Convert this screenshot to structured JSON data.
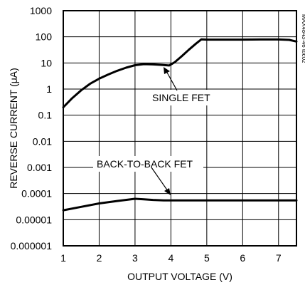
{
  "chart_data": {
    "type": "line",
    "xlabel": "OUTPUT VOLTAGE (V)",
    "ylabel": "REVERSE CURRENT (μA)",
    "xlim": [
      1,
      7.5
    ],
    "ylim": [
      1e-06,
      1000
    ],
    "yscale": "log",
    "grid": true,
    "x_ticks": [
      1,
      2,
      3,
      4,
      5,
      6,
      7
    ],
    "y_ticks": [
      {
        "value": 1000,
        "label": "1000"
      },
      {
        "value": 100,
        "label": "100"
      },
      {
        "value": 10,
        "label": "10"
      },
      {
        "value": 1,
        "label": "1"
      },
      {
        "value": 0.1,
        "label": "0.1"
      },
      {
        "value": 0.01,
        "label": "0.01"
      },
      {
        "value": 0.001,
        "label": "0.001"
      },
      {
        "value": 0.0001,
        "label": "0.0001"
      },
      {
        "value": 1e-05,
        "label": "0.00001"
      },
      {
        "value": 1e-06,
        "label": "0.000001"
      }
    ],
    "series": [
      {
        "name": "SINGLE FET",
        "x": [
          1.0,
          1.25,
          1.5,
          1.75,
          2.0,
          2.25,
          2.5,
          2.75,
          3.0,
          3.25,
          3.5,
          3.75,
          3.95,
          4.1,
          4.3,
          4.5,
          4.7,
          4.85,
          5.0,
          5.5,
          6.0,
          6.5,
          7.0,
          7.3,
          7.5
        ],
        "y": [
          0.2,
          0.45,
          0.9,
          1.6,
          2.5,
          3.6,
          5.0,
          6.6,
          8.2,
          9.0,
          8.8,
          8.4,
          8.0,
          10.5,
          18,
          32,
          55,
          80,
          78,
          78,
          78,
          79,
          79,
          76,
          66
        ]
      },
      {
        "name": "BACK-TO-BACK FET",
        "x": [
          1.0,
          1.5,
          2.0,
          2.5,
          3.0,
          3.25,
          3.5,
          3.8,
          4.0,
          5.0,
          6.0,
          7.0,
          7.5
        ],
        "y": [
          2.3e-05,
          3.1e-05,
          4.2e-05,
          5.2e-05,
          6.3e-05,
          6e-05,
          5.7e-05,
          5.5e-05,
          5.5e-05,
          5.5e-05,
          5.5e-05,
          5.5e-05,
          5.5e-05
        ]
      }
    ],
    "annotations": [
      {
        "text": "SINGLE FET",
        "target_series": "SINGLE FET"
      },
      {
        "text": "BACK-TO-BACK FET",
        "target_series": "BACK-TO-BACK FET"
      }
    ],
    "figure_id": "MAX4843-46 toc02"
  }
}
